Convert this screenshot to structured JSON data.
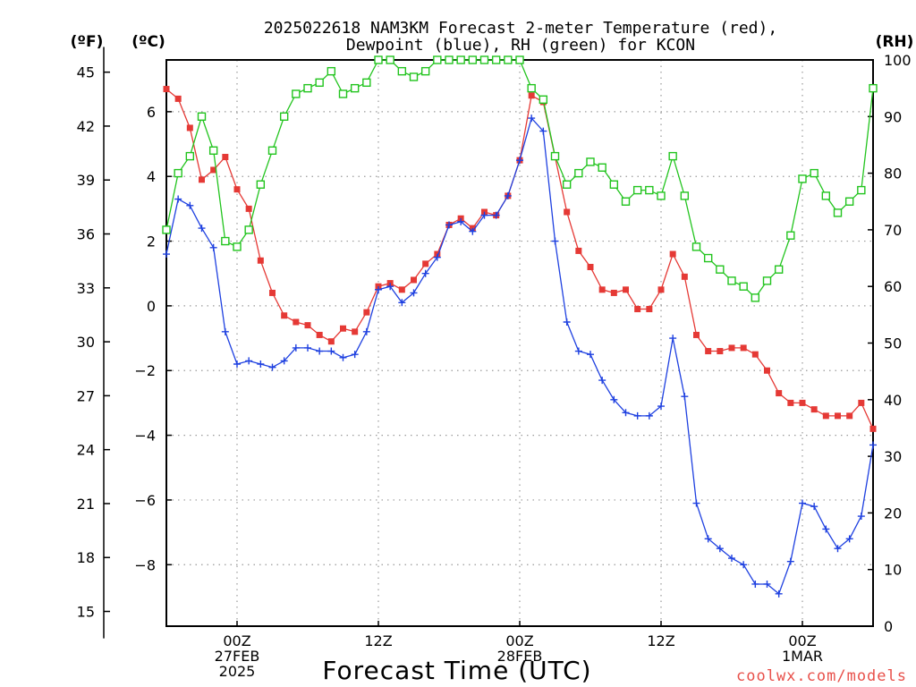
{
  "title_line1": "2025022618 NAM3KM Forecast 2-meter Temperature (red),",
  "title_line2": "Dewpoint (blue), RH (green) for KCON",
  "units": {
    "fahrenheit": "(ºF)",
    "celsius": "(ºC)",
    "rh": "(RH)"
  },
  "xlabel": "Forecast Time (UTC)",
  "credit": "coolwx.com/models",
  "colors": {
    "temperature": "#e53935",
    "dewpoint": "#1e40e0",
    "rh": "#22c41e",
    "grid": "#9a9a9a",
    "credit": "#e8504a"
  },
  "chart_data": {
    "type": "line",
    "title": "2025022618 NAM3KM Forecast 2-meter Temperature (red), Dewpoint (blue), RH (green) for KCON",
    "xlabel": "Forecast Time (UTC)",
    "x_start_label": "2025022618",
    "x_step_hours": 1,
    "x_ticks": [
      {
        "hour": 6,
        "label": [
          "00Z",
          "27FEB",
          "2025"
        ]
      },
      {
        "hour": 18,
        "label": [
          "12Z"
        ]
      },
      {
        "hour": 30,
        "label": [
          "00Z",
          "28FEB"
        ]
      },
      {
        "hour": 42,
        "label": [
          "12Z"
        ]
      },
      {
        "hour": 54,
        "label": [
          "00Z",
          "1MAR"
        ]
      }
    ],
    "grid": true,
    "left_axis_f": {
      "label": "(ºF)",
      "ticks": [
        15,
        18,
        21,
        24,
        27,
        30,
        33,
        36,
        39,
        42,
        45
      ],
      "range": [
        14.2,
        46.4
      ]
    },
    "left_axis_c": {
      "label": "(ºC)",
      "ticks": [
        -8,
        -6,
        -4,
        -2,
        0,
        2,
        4,
        6
      ],
      "range": [
        -9.9,
        7.6
      ]
    },
    "right_axis_rh": {
      "label": "(RH)",
      "ticks": [
        0,
        10,
        20,
        30,
        40,
        50,
        60,
        70,
        80,
        90,
        100
      ],
      "range": [
        0,
        100
      ]
    },
    "series": [
      {
        "name": "Temperature",
        "axis": "celsius",
        "color": "#e53935",
        "marker": "filled-square",
        "values": [
          6.7,
          6.4,
          5.5,
          3.9,
          4.2,
          4.6,
          3.6,
          3.0,
          1.4,
          0.4,
          -0.3,
          -0.5,
          -0.6,
          -0.9,
          -1.1,
          -0.7,
          -0.8,
          -0.2,
          0.6,
          0.7,
          0.5,
          0.8,
          1.3,
          1.6,
          2.5,
          2.7,
          2.4,
          2.9,
          2.8,
          3.4,
          4.5,
          6.5,
          6.3,
          4.6,
          2.9,
          1.7,
          1.2,
          0.5,
          0.4,
          0.5,
          -0.1,
          -0.1,
          0.5,
          1.6,
          0.9,
          -0.9,
          -1.4,
          -1.4,
          -1.3,
          -1.3,
          -1.5,
          -2.0,
          -2.7,
          -3.0,
          -3.0,
          -3.2,
          -3.4,
          -3.4,
          -3.4,
          -3.0,
          -3.8
        ]
      },
      {
        "name": "Dewpoint",
        "axis": "celsius",
        "color": "#1e40e0",
        "marker": "plus",
        "values": [
          1.6,
          3.3,
          3.1,
          2.4,
          1.8,
          -0.8,
          -1.8,
          -1.7,
          -1.8,
          -1.9,
          -1.7,
          -1.3,
          -1.3,
          -1.4,
          -1.4,
          -1.6,
          -1.5,
          -0.8,
          0.5,
          0.6,
          0.1,
          0.4,
          1.0,
          1.5,
          2.5,
          2.6,
          2.3,
          2.8,
          2.8,
          3.4,
          4.5,
          5.8,
          5.4,
          2.0,
          -0.5,
          -1.4,
          -1.5,
          -2.3,
          -2.9,
          -3.3,
          -3.4,
          -3.4,
          -3.1,
          -1.0,
          -2.8,
          -6.1,
          -7.2,
          -7.5,
          -7.8,
          -8.0,
          -8.6,
          -8.6,
          -8.9,
          -7.9,
          -6.1,
          -6.2,
          -6.9,
          -7.5,
          -7.2,
          -6.5,
          -4.3
        ]
      },
      {
        "name": "RH",
        "axis": "rh",
        "color": "#22c41e",
        "marker": "open-square",
        "values": [
          70,
          80,
          83,
          90,
          84,
          68,
          67,
          70,
          78,
          84,
          90,
          94,
          95,
          96,
          98,
          94,
          95,
          96,
          100,
          100,
          98,
          97,
          98,
          100,
          100,
          100,
          100,
          100,
          100,
          100,
          100,
          95,
          93,
          83,
          78,
          80,
          82,
          81,
          78,
          75,
          77,
          77,
          76,
          83,
          76,
          67,
          65,
          63,
          61,
          60,
          58,
          61,
          63,
          69,
          79,
          80,
          76,
          73,
          75,
          77,
          95
        ]
      }
    ]
  }
}
